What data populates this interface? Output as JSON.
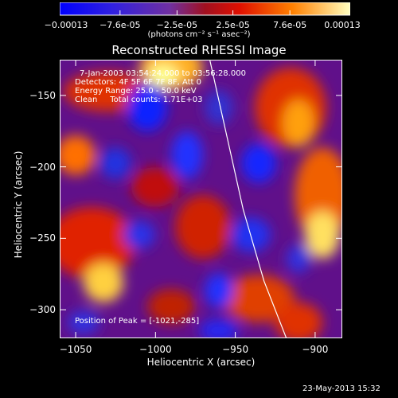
{
  "colorbar": {
    "ticks": [
      "-0.00013",
      "-7.6e-05",
      "-2.5e-05",
      "2.5e-05",
      "7.6e-05",
      "0.00013"
    ],
    "unit_label": "(photons cm⁻² s⁻¹ asec⁻²)"
  },
  "chart_data": {
    "type": "heatmap",
    "title": "Reconstructed RHESSI Image",
    "xlabel": "Heliocentric X (arcsec)",
    "ylabel": "Heliocentric Y (arcsec)",
    "xlim": [
      -1060,
      -883
    ],
    "ylim": [
      -320,
      -125
    ],
    "x_ticks": [
      "-1050",
      "-1000",
      "-950",
      "-900"
    ],
    "y_ticks": [
      "-150",
      "-200",
      "-250",
      "-300"
    ],
    "colorbar_range": [
      -0.00013,
      0.00013
    ],
    "annotations": [
      "7-Jan-2003 03:54:24.000 to 03:56:28.000",
      "Detectors: 4F 5F 6F 7F 8F, Att 0",
      "Energy Range: 25.0 - 50.0 keV",
      "Clean     Total counts: 1.71E+03"
    ],
    "peak_label": "Position of Peak = [-1021,-285]",
    "peak": [
      -1021,
      -285
    ],
    "limb_curve": [
      [
        -966,
        -125
      ],
      [
        -955,
        -180
      ],
      [
        -945,
        -230
      ],
      [
        -932,
        -280
      ],
      [
        -918,
        -320
      ]
    ]
  },
  "timestamp": "23-May-2013 15:32"
}
